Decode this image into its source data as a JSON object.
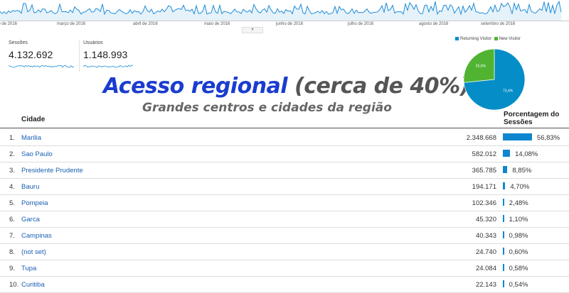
{
  "timeline": {
    "months": [
      "iro de 2016",
      "março de 2016",
      "abril de 2016",
      "maio de 2016",
      "junho de 2016",
      "julho de 2016",
      "agosto de 2016",
      "setembro de 2016"
    ],
    "line_color": "#1f8dd6"
  },
  "metrics": [
    {
      "label": "Sessões",
      "value": "4.132.692"
    },
    {
      "label": "Usuários",
      "value": "1.148.993"
    }
  ],
  "overlay": {
    "title_main": "Acesso regional",
    "title_paren": "(cerca de 40%)",
    "subtitle": "Grandes centros e cidades da região"
  },
  "pie": {
    "legend": [
      {
        "label": "Returning Visitor",
        "color": "#058dc7"
      },
      {
        "label": "New Visitor",
        "color": "#50b432"
      }
    ],
    "slices": [
      {
        "label": "73,4%",
        "value": 73.4
      },
      {
        "label": "26,6%",
        "value": 26.6
      }
    ]
  },
  "table": {
    "col_city": "Cidade",
    "col_pct": "Porcentagem do Sessões",
    "rows": [
      {
        "idx": "1.",
        "city": "Marilia",
        "sessions": "2.348.668",
        "pct": "56,83%",
        "value": 56.83
      },
      {
        "idx": "2.",
        "city": "Sao Paulo",
        "sessions": "582.012",
        "pct": "14,08%",
        "value": 14.08
      },
      {
        "idx": "3.",
        "city": "Presidente Prudente",
        "sessions": "365.785",
        "pct": "8,85%",
        "value": 8.85
      },
      {
        "idx": "4.",
        "city": "Bauru",
        "sessions": "194.171",
        "pct": "4,70%",
        "value": 4.7
      },
      {
        "idx": "5.",
        "city": "Pompeia",
        "sessions": "102.346",
        "pct": "2,48%",
        "value": 2.48
      },
      {
        "idx": "6.",
        "city": "Garca",
        "sessions": "45.320",
        "pct": "1,10%",
        "value": 1.1
      },
      {
        "idx": "7.",
        "city": "Campinas",
        "sessions": "40.343",
        "pct": "0,98%",
        "value": 0.98
      },
      {
        "idx": "8.",
        "city": "(not set)",
        "sessions": "24.740",
        "pct": "0,60%",
        "value": 0.6
      },
      {
        "idx": "9.",
        "city": "Tupa",
        "sessions": "24.084",
        "pct": "0,58%",
        "value": 0.58
      },
      {
        "idx": "10.",
        "city": "Curitiba",
        "sessions": "22.143",
        "pct": "0,54%",
        "value": 0.54
      }
    ]
  }
}
